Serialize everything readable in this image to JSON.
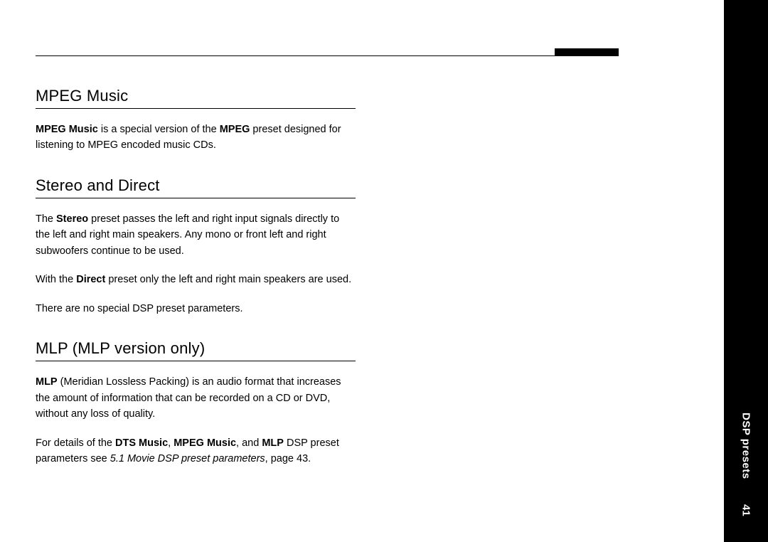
{
  "side": {
    "label": "DSP presets",
    "page_number": "41"
  },
  "sections": [
    {
      "heading": "MPEG Music",
      "paragraphs": [
        "<b>MPEG Music</b> is a special version of the <b>MPEG</b> preset designed for listening to MPEG encoded music CDs."
      ]
    },
    {
      "heading": "Stereo and Direct",
      "paragraphs": [
        "The <b>Stereo</b> preset passes the left and right input signals directly to the left and right main speakers. Any mono or front left and right subwoofers continue to be used.",
        "With the <b>Direct</b> preset only the left and right main speakers are used.",
        "There are no special DSP preset parameters."
      ]
    },
    {
      "heading": "MLP (MLP version only)",
      "paragraphs": [
        "<b>MLP</b> (Meridian Lossless Packing) is an audio format that increases the amount of information that can be recorded on a CD or DVD, without any loss of quality.",
        "For details of the <b>DTS Music</b>, <b>MPEG Music</b>, and <b>MLP</b> DSP preset parameters see <i>5.1 Movie DSP preset parameters</i>, page 43."
      ]
    }
  ]
}
